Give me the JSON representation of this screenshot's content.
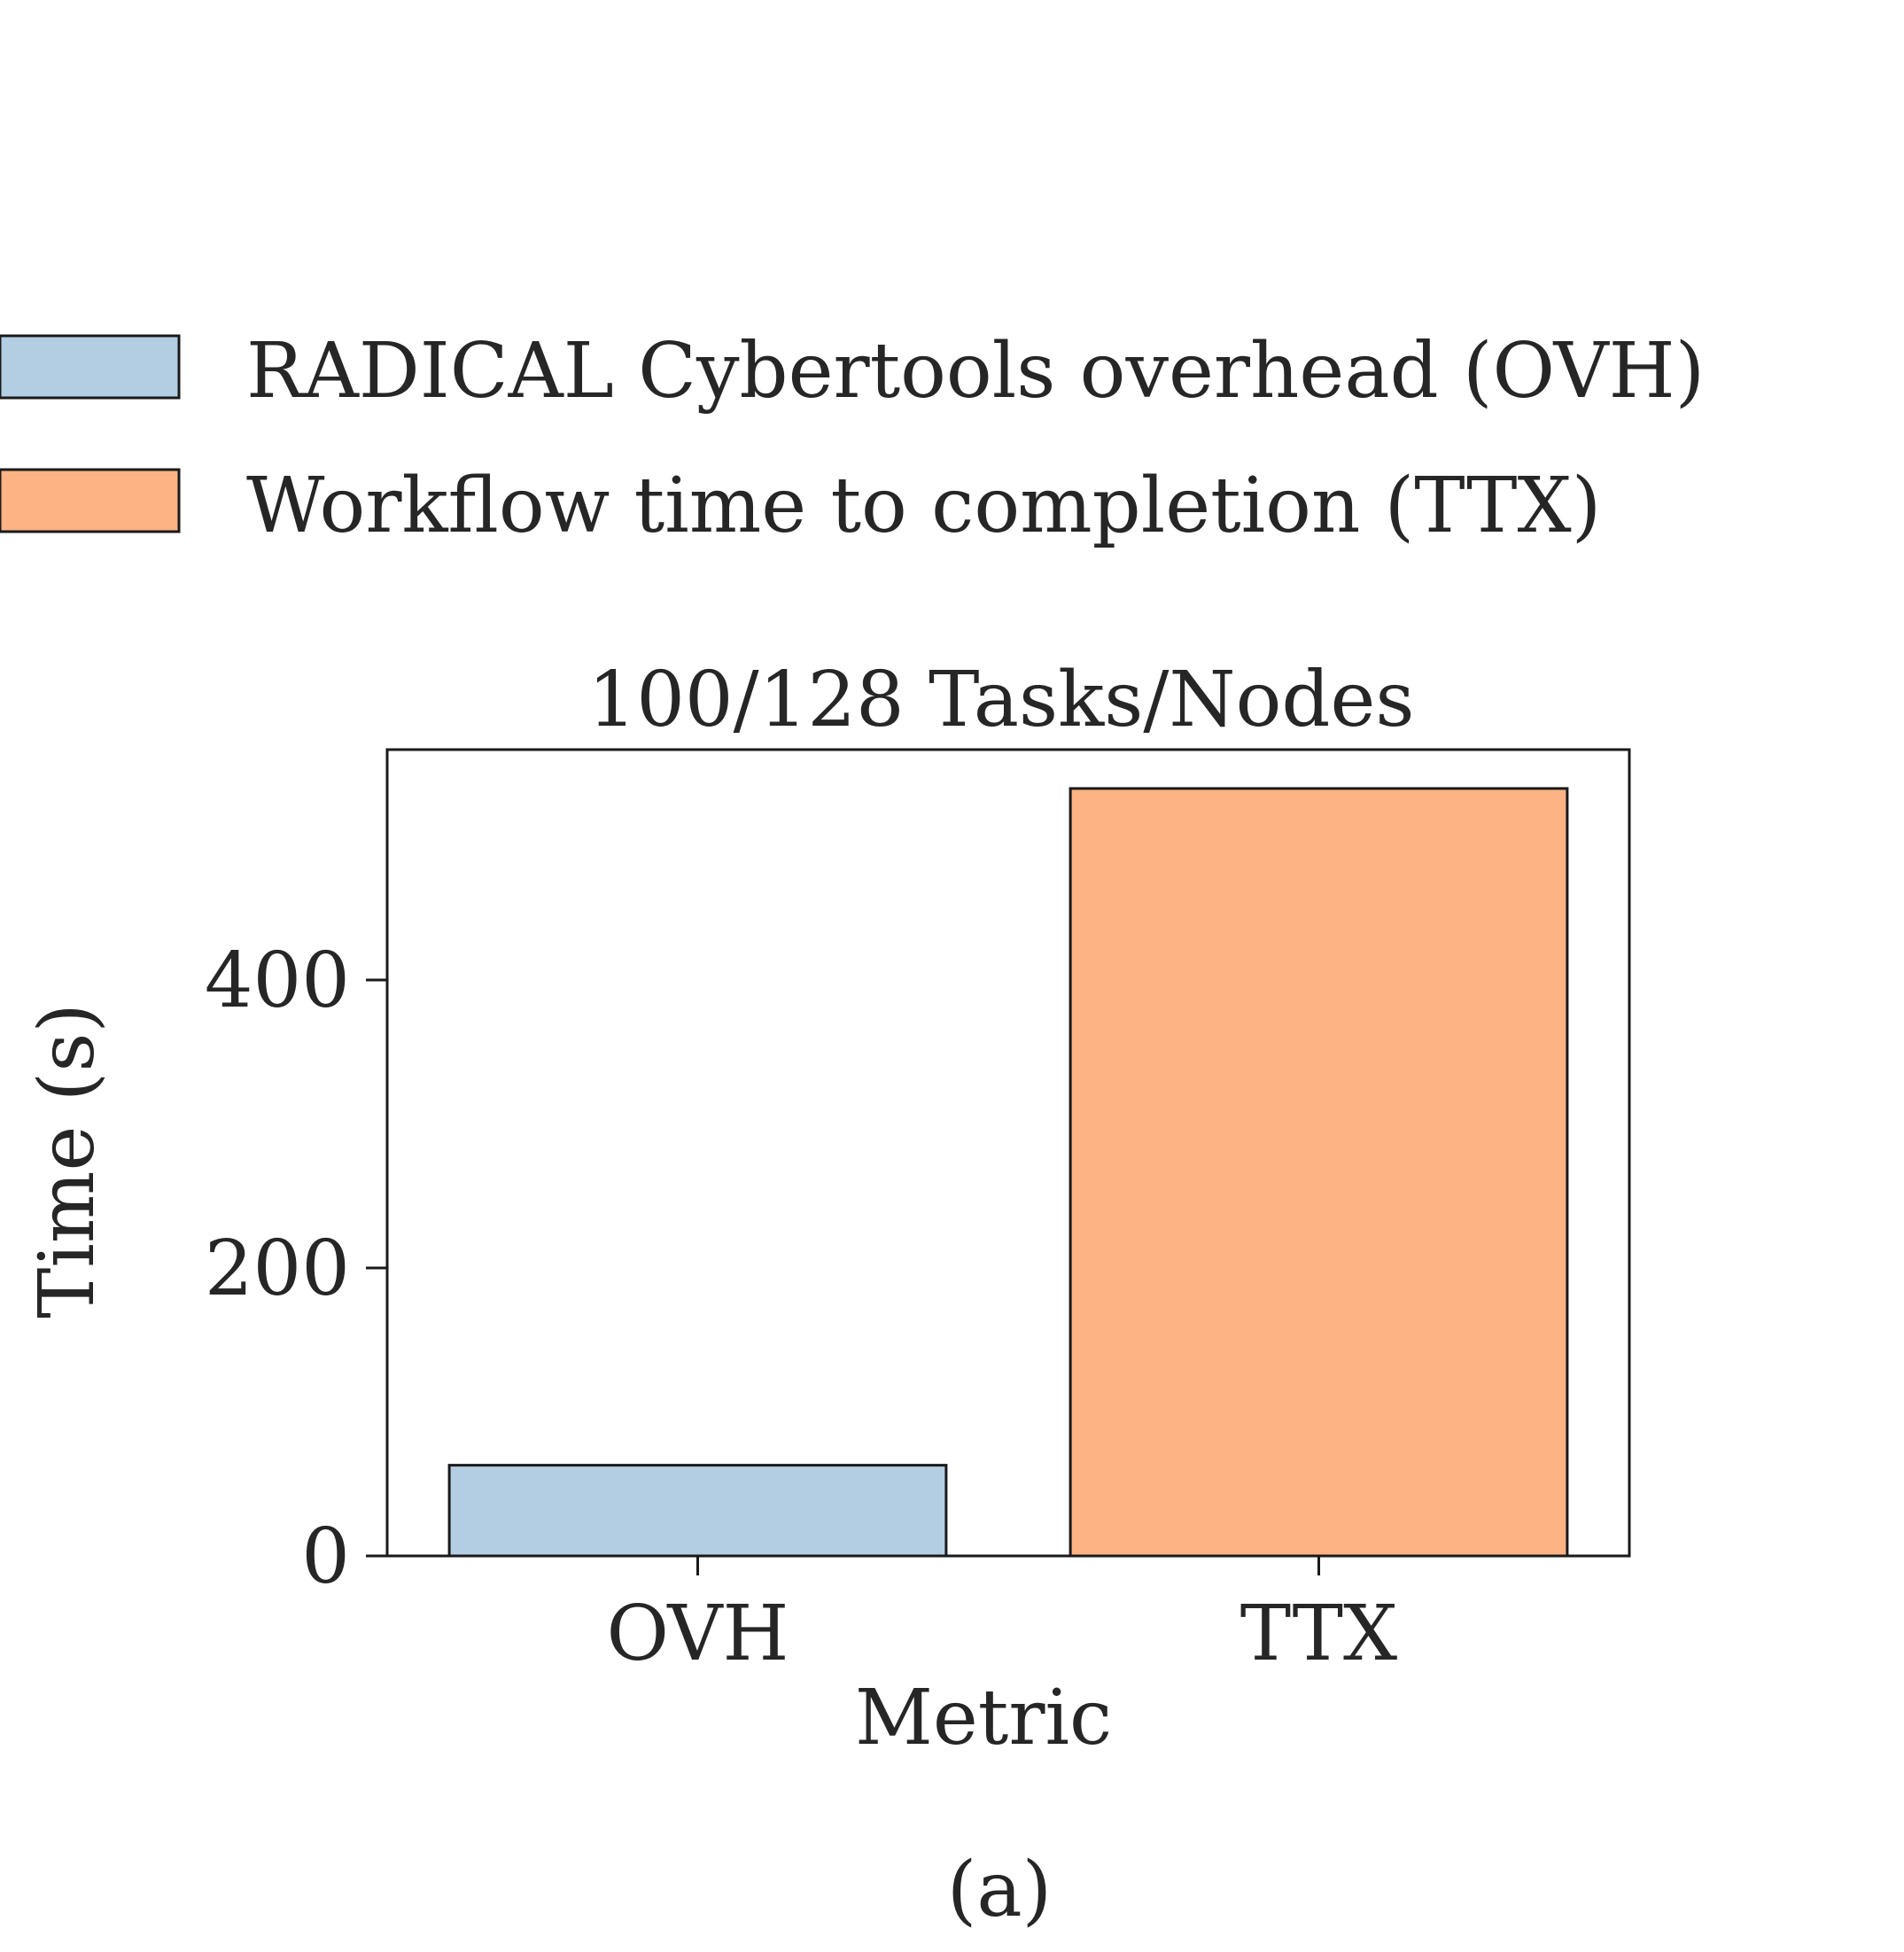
{
  "chart_data": {
    "type": "bar",
    "title": "100/128 Tasks/Nodes",
    "xlabel": "Metric",
    "ylabel": "Time (s)",
    "categories": [
      "OVH",
      "TTX"
    ],
    "values": [
      63,
      533
    ],
    "ylim": [
      0,
      560
    ],
    "yticks": [
      0,
      200,
      400
    ],
    "colors": [
      "#b3cde3",
      "#fdb384"
    ],
    "legend": {
      "placement": "top",
      "entries": [
        {
          "label": "RADICAL Cybertools overhead (OVH)",
          "color": "#b3cde3"
        },
        {
          "label": "Workflow time to completion (TTX)",
          "color": "#fdb384"
        }
      ]
    },
    "grid": false
  },
  "caption": "(a)"
}
